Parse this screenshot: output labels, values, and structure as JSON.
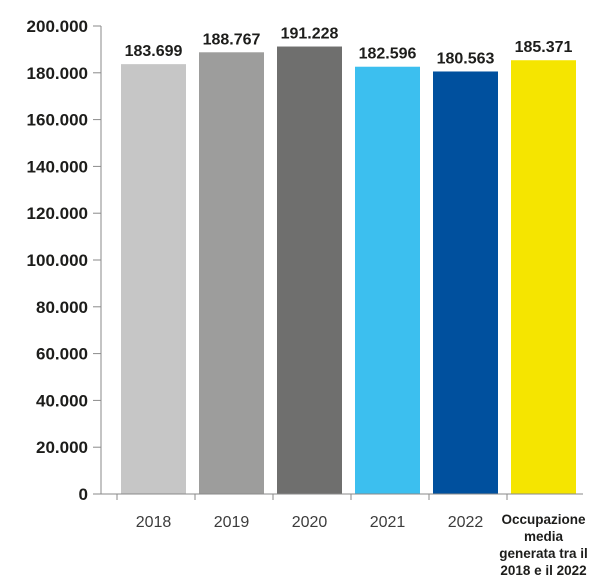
{
  "chart_data": {
    "type": "bar",
    "categories": [
      "2018",
      "2019",
      "2020",
      "2021",
      "2022",
      "Occupazione media generata tra il 2018 e il 2022"
    ],
    "values": [
      183699,
      188767,
      191228,
      182596,
      180563,
      185371
    ],
    "data_labels": [
      "183.699",
      "188.767",
      "191.228",
      "182.596",
      "180.563",
      "185.371"
    ],
    "bar_colors": [
      "#c6c6c6",
      "#9d9d9c",
      "#6f6f6e",
      "#3cbfef",
      "#00509e",
      "#f5e500"
    ],
    "ylim": [
      0,
      200000
    ],
    "yticks": [
      0,
      20000,
      40000,
      60000,
      80000,
      100000,
      120000,
      140000,
      160000,
      180000,
      200000
    ],
    "ytick_labels": [
      "0",
      "20.000",
      "40.000",
      "60.000",
      "80.000",
      "100.000",
      "120.000",
      "140.000",
      "160.000",
      "180.000",
      "200.000"
    ],
    "xtick_labels": [
      [
        "2018"
      ],
      [
        "2019"
      ],
      [
        "2020"
      ],
      [
        "2021"
      ],
      [
        "2022"
      ],
      [
        "Occupazione",
        "media",
        "generata tra il",
        "2018 e il 2022"
      ]
    ],
    "xtick_bold": [
      false,
      false,
      false,
      false,
      false,
      true
    ],
    "grid": false,
    "legend": "none"
  }
}
